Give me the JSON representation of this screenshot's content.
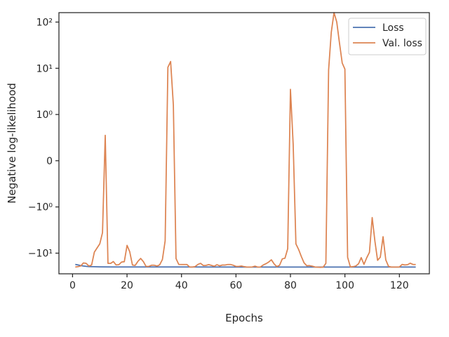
{
  "chart_data": {
    "type": "line",
    "title": "",
    "xlabel": "Epochs",
    "ylabel": "Negative log-likelihood",
    "yscale": "symlog",
    "grid": false,
    "legend_position": "top-right",
    "xlim": [
      -5,
      131
    ],
    "x_ticks": [
      0,
      20,
      40,
      60,
      80,
      100,
      120
    ],
    "y_ticks": [
      {
        "value": 100,
        "label": "10²"
      },
      {
        "value": 10,
        "label": "10¹"
      },
      {
        "value": 1,
        "label": "10⁰"
      },
      {
        "value": 0,
        "label": "0"
      },
      {
        "value": -1,
        "label": "−10⁰"
      },
      {
        "value": -10,
        "label": "−10¹"
      }
    ],
    "series": [
      {
        "name": "Loss",
        "color": "#4c72b0",
        "points": [
          [
            1,
            -17.5
          ],
          [
            2,
            -18.0
          ],
          [
            3,
            -18.6
          ],
          [
            4,
            -19.0
          ],
          [
            5,
            -19.3
          ],
          [
            6,
            -19.5
          ],
          [
            8,
            -19.7
          ],
          [
            10,
            -19.8
          ],
          [
            15,
            -19.9
          ],
          [
            20,
            -19.9
          ],
          [
            40,
            -19.95
          ],
          [
            60,
            -20.0
          ],
          [
            80,
            -20.0
          ],
          [
            100,
            -20.0
          ],
          [
            110,
            -19.95
          ],
          [
            126,
            -20.0
          ]
        ]
      },
      {
        "name": "Val. loss",
        "color": "#dd8452",
        "points": [
          [
            1,
            -20.0
          ],
          [
            2,
            -19.6
          ],
          [
            3,
            -18.9
          ],
          [
            4,
            -16.3
          ],
          [
            5,
            -16.6
          ],
          [
            6,
            -19.0
          ],
          [
            7,
            -18.0
          ],
          [
            8,
            -9.5
          ],
          [
            9,
            -7.7
          ],
          [
            10,
            -6.3
          ],
          [
            11,
            -3.6
          ],
          [
            12,
            0.55
          ],
          [
            13,
            -16.6
          ],
          [
            14,
            -16.6
          ],
          [
            15,
            -15.2
          ],
          [
            16,
            -18.0
          ],
          [
            17,
            -17.8
          ],
          [
            18,
            -15.6
          ],
          [
            19,
            -15.3
          ],
          [
            20,
            -6.8
          ],
          [
            21,
            -9.3
          ],
          [
            22,
            -18.1
          ],
          [
            23,
            -18.4
          ],
          [
            24,
            -15.0
          ],
          [
            25,
            -13.0
          ],
          [
            26,
            -15.3
          ],
          [
            27,
            -19.4
          ],
          [
            28,
            -19.3
          ],
          [
            29,
            -18.3
          ],
          [
            30,
            -18.3
          ],
          [
            31,
            -19.0
          ],
          [
            32,
            -17.9
          ],
          [
            33,
            -13.7
          ],
          [
            34,
            -5.4
          ],
          [
            35,
            10.5
          ],
          [
            36,
            14.0
          ],
          [
            37,
            1.6
          ],
          [
            38,
            -13.1
          ],
          [
            39,
            -17.5
          ],
          [
            40,
            -17.6
          ],
          [
            41,
            -17.6
          ],
          [
            42,
            -17.6
          ],
          [
            43,
            -20.0
          ],
          [
            44,
            -20.0
          ],
          [
            45,
            -19.5
          ],
          [
            46,
            -17.6
          ],
          [
            47,
            -16.6
          ],
          [
            48,
            -18.5
          ],
          [
            49,
            -18.4
          ],
          [
            50,
            -17.7
          ],
          [
            51,
            -18.4
          ],
          [
            52,
            -19.2
          ],
          [
            53,
            -17.8
          ],
          [
            54,
            -18.8
          ],
          [
            55,
            -18.1
          ],
          [
            56,
            -18.1
          ],
          [
            57,
            -17.6
          ],
          [
            58,
            -17.6
          ],
          [
            59,
            -18.3
          ],
          [
            60,
            -19.3
          ],
          [
            61,
            -19.4
          ],
          [
            62,
            -19.0
          ],
          [
            63,
            -19.6
          ],
          [
            64,
            -20.0
          ],
          [
            65,
            -20.0
          ],
          [
            66,
            -19.9
          ],
          [
            67,
            -19.1
          ],
          [
            68,
            -20.0
          ],
          [
            69,
            -19.9
          ],
          [
            70,
            -18.0
          ],
          [
            71,
            -16.9
          ],
          [
            72,
            -15.6
          ],
          [
            73,
            -13.9
          ],
          [
            74,
            -17.1
          ],
          [
            75,
            -19.5
          ],
          [
            76,
            -18.3
          ],
          [
            77,
            -13.3
          ],
          [
            78,
            -12.9
          ],
          [
            79,
            -8.0
          ],
          [
            80,
            3.5
          ],
          [
            81,
            0.35
          ],
          [
            82,
            -6.3
          ],
          [
            83,
            -8.3
          ],
          [
            84,
            -11.8
          ],
          [
            85,
            -16.2
          ],
          [
            86,
            -18.7
          ],
          [
            87,
            -18.6
          ],
          [
            88,
            -19.1
          ],
          [
            89,
            -19.9
          ],
          [
            90,
            -20.1
          ],
          [
            91,
            -20.2
          ],
          [
            92,
            -20.1
          ],
          [
            93,
            -16.6
          ],
          [
            94,
            9.2
          ],
          [
            95,
            60
          ],
          [
            96,
            160
          ],
          [
            97,
            100
          ],
          [
            98,
            35
          ],
          [
            99,
            13
          ],
          [
            100,
            9.6
          ],
          [
            101,
            -12.3
          ],
          [
            102,
            -19.8
          ],
          [
            103,
            -19.6
          ],
          [
            104,
            -18.9
          ],
          [
            105,
            -17.0
          ],
          [
            106,
            -12.5
          ],
          [
            107,
            -17.5
          ],
          [
            108,
            -12.6
          ],
          [
            109,
            -9.6
          ],
          [
            110,
            -1.7
          ],
          [
            111,
            -5.5
          ],
          [
            112,
            -14.3
          ],
          [
            113,
            -12.2
          ],
          [
            114,
            -4.4
          ],
          [
            115,
            -14.0
          ],
          [
            116,
            -19.3
          ],
          [
            117,
            -20.0
          ],
          [
            118,
            -20.0
          ],
          [
            119,
            -20.0
          ],
          [
            120,
            -19.9
          ],
          [
            121,
            -17.5
          ],
          [
            122,
            -18.0
          ],
          [
            123,
            -17.8
          ],
          [
            124,
            -16.5
          ],
          [
            125,
            -17.6
          ],
          [
            126,
            -17.6
          ]
        ]
      }
    ]
  }
}
